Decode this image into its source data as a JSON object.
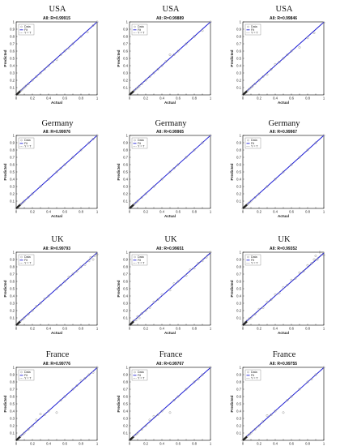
{
  "chart_data": [
    {
      "type": "scatter",
      "country": "USA",
      "title": "All: R=0.99915",
      "xlabel": "Actual",
      "ylabel": "Predicted",
      "xlim": [
        0,
        1
      ],
      "ylim": [
        0,
        1
      ],
      "legend": [
        "Data",
        "Fit",
        "Y = T"
      ],
      "legend_position": "top-left",
      "fit": [
        0.005,
        0.995
      ],
      "x": [
        0,
        0.01,
        0.02,
        0.03,
        0.04,
        0.05,
        0.06,
        0.08,
        0.1,
        0.12,
        0.15,
        0.2,
        0.25,
        0.3,
        0.35,
        0.4,
        0.45,
        0.5,
        0.55,
        0.6,
        0.65,
        0.7,
        0.8,
        0.88,
        0.95,
        1.0
      ],
      "y": [
        0,
        0.012,
        0.02,
        0.028,
        0.041,
        0.052,
        0.06,
        0.078,
        0.1,
        0.122,
        0.148,
        0.2,
        0.25,
        0.3,
        0.35,
        0.4,
        0.45,
        0.48,
        0.55,
        0.6,
        0.64,
        0.7,
        0.8,
        0.86,
        0.95,
        1.0
      ]
    },
    {
      "type": "scatter",
      "country": "USA",
      "title": "All: R=0.99889",
      "xlabel": "Actual",
      "ylabel": "Predicted",
      "xlim": [
        0,
        1
      ],
      "ylim": [
        0,
        1
      ],
      "legend": [
        "Data",
        "Fit",
        "Y = T"
      ],
      "legend_position": "top-left",
      "fit": [
        0.005,
        0.995
      ],
      "x": [
        0,
        0.01,
        0.02,
        0.03,
        0.04,
        0.05,
        0.06,
        0.08,
        0.1,
        0.12,
        0.15,
        0.2,
        0.25,
        0.3,
        0.35,
        0.4,
        0.45,
        0.5,
        0.55,
        0.6,
        0.7,
        0.8,
        0.9,
        1.0
      ],
      "y": [
        0,
        0.01,
        0.022,
        0.03,
        0.04,
        0.05,
        0.062,
        0.08,
        0.1,
        0.12,
        0.15,
        0.2,
        0.25,
        0.3,
        0.35,
        0.4,
        0.46,
        0.55,
        0.55,
        0.6,
        0.7,
        0.8,
        0.88,
        1.0
      ]
    },
    {
      "type": "scatter",
      "country": "USA",
      "title": "All: R=0.99846",
      "xlabel": "Actual",
      "ylabel": "Predicted",
      "xlim": [
        0,
        1
      ],
      "ylim": [
        0,
        1
      ],
      "legend": [
        "Data",
        "Fit",
        "Y = T"
      ],
      "legend_position": "top-left",
      "fit": [
        0.006,
        0.99
      ],
      "x": [
        0,
        0.01,
        0.02,
        0.03,
        0.04,
        0.05,
        0.06,
        0.08,
        0.1,
        0.12,
        0.15,
        0.2,
        0.25,
        0.3,
        0.35,
        0.4,
        0.45,
        0.5,
        0.55,
        0.6,
        0.7,
        0.8,
        0.88,
        1.0
      ],
      "y": [
        0,
        0.01,
        0.02,
        0.03,
        0.04,
        0.05,
        0.06,
        0.08,
        0.1,
        0.12,
        0.15,
        0.2,
        0.25,
        0.28,
        0.35,
        0.42,
        0.45,
        0.5,
        0.55,
        0.6,
        0.65,
        0.78,
        0.85,
        0.99
      ]
    },
    {
      "type": "scatter",
      "country": "Germany",
      "title": "All: R=0.99976",
      "xlabel": "Actual",
      "ylabel": "Predicted",
      "xlim": [
        0,
        1
      ],
      "ylim": [
        0,
        1
      ],
      "legend": [
        "Data",
        "Fit",
        "Y = T"
      ],
      "legend_position": "top-left",
      "fit": [
        0.002,
        0.998
      ],
      "x": [
        0,
        0.01,
        0.02,
        0.03,
        0.04,
        0.05,
        0.06,
        0.08,
        0.1,
        0.15,
        0.2,
        0.3,
        0.4,
        0.5,
        0.55,
        0.6,
        0.7,
        0.8,
        0.9,
        0.95,
        1.0
      ],
      "y": [
        0,
        0.01,
        0.02,
        0.03,
        0.04,
        0.05,
        0.06,
        0.08,
        0.1,
        0.15,
        0.2,
        0.3,
        0.4,
        0.5,
        0.55,
        0.6,
        0.7,
        0.8,
        0.9,
        0.95,
        1.0
      ]
    },
    {
      "type": "scatter",
      "country": "Germany",
      "title": "All: R=0.99965",
      "xlabel": "Actual",
      "ylabel": "Predicted",
      "xlim": [
        0,
        1
      ],
      "ylim": [
        0,
        1
      ],
      "legend": [
        "Data",
        "Fit",
        "Y = T"
      ],
      "legend_position": "top-left",
      "fit": [
        0.003,
        0.997
      ],
      "x": [
        0,
        0.01,
        0.02,
        0.03,
        0.04,
        0.05,
        0.06,
        0.08,
        0.1,
        0.15,
        0.2,
        0.3,
        0.4,
        0.5,
        0.55,
        0.6,
        0.7,
        0.8,
        0.9,
        1.0
      ],
      "y": [
        0,
        0.01,
        0.02,
        0.03,
        0.04,
        0.05,
        0.06,
        0.08,
        0.1,
        0.15,
        0.2,
        0.3,
        0.4,
        0.5,
        0.55,
        0.6,
        0.7,
        0.8,
        0.9,
        1.0
      ]
    },
    {
      "type": "scatter",
      "country": "Germany",
      "title": "All: R=0.99967",
      "xlabel": "Actual",
      "ylabel": "Predicted",
      "xlim": [
        0,
        1
      ],
      "ylim": [
        0,
        1
      ],
      "legend": [
        "Data",
        "Fit",
        "Y = T"
      ],
      "legend_position": "top-left",
      "fit": [
        0.003,
        0.997
      ],
      "x": [
        0,
        0.01,
        0.02,
        0.03,
        0.04,
        0.05,
        0.06,
        0.08,
        0.1,
        0.15,
        0.2,
        0.3,
        0.4,
        0.5,
        0.6,
        0.7,
        0.8,
        0.9,
        1.0
      ],
      "y": [
        0,
        0.01,
        0.02,
        0.03,
        0.04,
        0.05,
        0.06,
        0.08,
        0.1,
        0.15,
        0.2,
        0.3,
        0.4,
        0.5,
        0.6,
        0.7,
        0.8,
        0.9,
        1.0
      ]
    },
    {
      "type": "scatter",
      "country": "UK",
      "title": "All: R=0.99793",
      "xlabel": "Actual",
      "ylabel": "Predicted",
      "xlim": [
        0,
        1
      ],
      "ylim": [
        0,
        1
      ],
      "legend": [
        "Data",
        "Fit",
        "Y = T"
      ],
      "legend_position": "top-left",
      "fit": [
        0.008,
        0.985
      ],
      "x": [
        0,
        0.01,
        0.02,
        0.03,
        0.05,
        0.08,
        0.1,
        0.15,
        0.2,
        0.25,
        0.3,
        0.35,
        0.4,
        0.5,
        0.55,
        0.6,
        0.65,
        0.7,
        0.75,
        0.8,
        0.85,
        0.9,
        0.92,
        0.95,
        0.97,
        1.0
      ],
      "y": [
        0,
        0.012,
        0.02,
        0.035,
        0.05,
        0.08,
        0.1,
        0.15,
        0.2,
        0.26,
        0.3,
        0.36,
        0.4,
        0.5,
        0.55,
        0.6,
        0.66,
        0.7,
        0.74,
        0.8,
        0.83,
        0.88,
        0.93,
        0.9,
        0.95,
        0.97
      ]
    },
    {
      "type": "scatter",
      "country": "UK",
      "title": "All: R=0.99651",
      "xlabel": "Actual",
      "ylabel": "Predicted",
      "xlim": [
        0,
        1
      ],
      "ylim": [
        0,
        1
      ],
      "legend": [
        "Data",
        "Fit",
        "Y = T"
      ],
      "legend_position": "top-left",
      "fit": [
        0.01,
        0.98
      ],
      "x": [
        0,
        0.01,
        0.02,
        0.03,
        0.05,
        0.08,
        0.1,
        0.12,
        0.15,
        0.2,
        0.25,
        0.3,
        0.35,
        0.4,
        0.5,
        0.55,
        0.6,
        0.7,
        0.75,
        0.8,
        0.85,
        0.9,
        0.95,
        1.0
      ],
      "y": [
        0,
        0.015,
        0.02,
        0.04,
        0.06,
        0.07,
        0.12,
        0.1,
        0.16,
        0.2,
        0.24,
        0.32,
        0.35,
        0.42,
        0.48,
        0.57,
        0.6,
        0.68,
        0.76,
        0.78,
        0.85,
        0.88,
        0.93,
        1.0
      ]
    },
    {
      "type": "scatter",
      "country": "UK",
      "title": "All: R=0.99352",
      "xlabel": "Actual",
      "ylabel": "Predicted",
      "xlim": [
        0,
        1
      ],
      "ylim": [
        0,
        1
      ],
      "legend": [
        "Data",
        "Fit",
        "Y = T"
      ],
      "legend_position": "top-left",
      "fit": [
        0.012,
        0.975
      ],
      "x": [
        0,
        0.01,
        0.02,
        0.03,
        0.05,
        0.08,
        0.1,
        0.15,
        0.2,
        0.25,
        0.3,
        0.35,
        0.4,
        0.45,
        0.5,
        0.55,
        0.6,
        0.65,
        0.7,
        0.75,
        0.8,
        0.85,
        0.88,
        0.9,
        0.92,
        0.95,
        1.0
      ],
      "y": [
        0,
        0.015,
        0.02,
        0.04,
        0.06,
        0.09,
        0.1,
        0.15,
        0.22,
        0.24,
        0.32,
        0.35,
        0.42,
        0.44,
        0.52,
        0.55,
        0.62,
        0.64,
        0.72,
        0.74,
        0.82,
        0.85,
        0.9,
        0.95,
        0.9,
        1.0,
        0.96
      ]
    },
    {
      "type": "scatter",
      "country": "France",
      "title": "All: R=0.99776",
      "xlabel": "Actual",
      "ylabel": "Predicted",
      "xlim": [
        0,
        1
      ],
      "ylim": [
        0,
        1
      ],
      "legend": [
        "Data",
        "Fit",
        "Y = T"
      ],
      "legend_position": "top-left",
      "fit": [
        0.008,
        0.988
      ],
      "x": [
        0,
        0.01,
        0.02,
        0.03,
        0.05,
        0.08,
        0.1,
        0.15,
        0.2,
        0.25,
        0.3,
        0.35,
        0.4,
        0.5,
        0.55,
        0.6,
        0.7,
        0.75,
        0.8,
        0.85,
        0.9,
        0.95,
        1.0
      ],
      "y": [
        0,
        0.01,
        0.02,
        0.03,
        0.05,
        0.08,
        0.1,
        0.15,
        0.2,
        0.28,
        0.36,
        0.35,
        0.4,
        0.38,
        0.55,
        0.6,
        0.7,
        0.75,
        0.82,
        0.85,
        0.9,
        0.93,
        1.0
      ]
    },
    {
      "type": "scatter",
      "country": "France",
      "title": "All: R=0.99767",
      "xlabel": "Actual",
      "ylabel": "Predicted",
      "xlim": [
        0,
        1
      ],
      "ylim": [
        0,
        1
      ],
      "legend": [
        "Data",
        "Fit",
        "Y = T"
      ],
      "legend_position": "top-left",
      "fit": [
        0.008,
        0.988
      ],
      "x": [
        0,
        0.01,
        0.02,
        0.03,
        0.05,
        0.08,
        0.1,
        0.15,
        0.2,
        0.25,
        0.3,
        0.35,
        0.4,
        0.5,
        0.55,
        0.6,
        0.7,
        0.8,
        0.85,
        0.9,
        1.0
      ],
      "y": [
        0,
        0.01,
        0.02,
        0.03,
        0.05,
        0.08,
        0.1,
        0.15,
        0.2,
        0.28,
        0.33,
        0.35,
        0.4,
        0.38,
        0.55,
        0.6,
        0.7,
        0.8,
        0.84,
        0.9,
        1.0
      ]
    },
    {
      "type": "scatter",
      "country": "France",
      "title": "All: R=0.99755",
      "xlabel": "Actual",
      "ylabel": "Predicted",
      "xlim": [
        0,
        1
      ],
      "ylim": [
        0,
        1
      ],
      "legend": [
        "Data",
        "Fit",
        "Y = T"
      ],
      "legend_position": "top-left",
      "fit": [
        0.008,
        0.988
      ],
      "x": [
        0,
        0.01,
        0.02,
        0.03,
        0.05,
        0.08,
        0.1,
        0.15,
        0.2,
        0.25,
        0.3,
        0.35,
        0.4,
        0.5,
        0.55,
        0.6,
        0.7,
        0.8,
        0.85,
        0.9,
        1.0
      ],
      "y": [
        0,
        0.01,
        0.02,
        0.03,
        0.05,
        0.08,
        0.1,
        0.15,
        0.2,
        0.26,
        0.34,
        0.35,
        0.4,
        0.38,
        0.55,
        0.6,
        0.7,
        0.8,
        0.84,
        0.9,
        1.0
      ]
    }
  ],
  "colors": {
    "fit": "#1f1fd6",
    "identity": "#888888",
    "points": "#9a9a9a",
    "axis": "#000000"
  }
}
